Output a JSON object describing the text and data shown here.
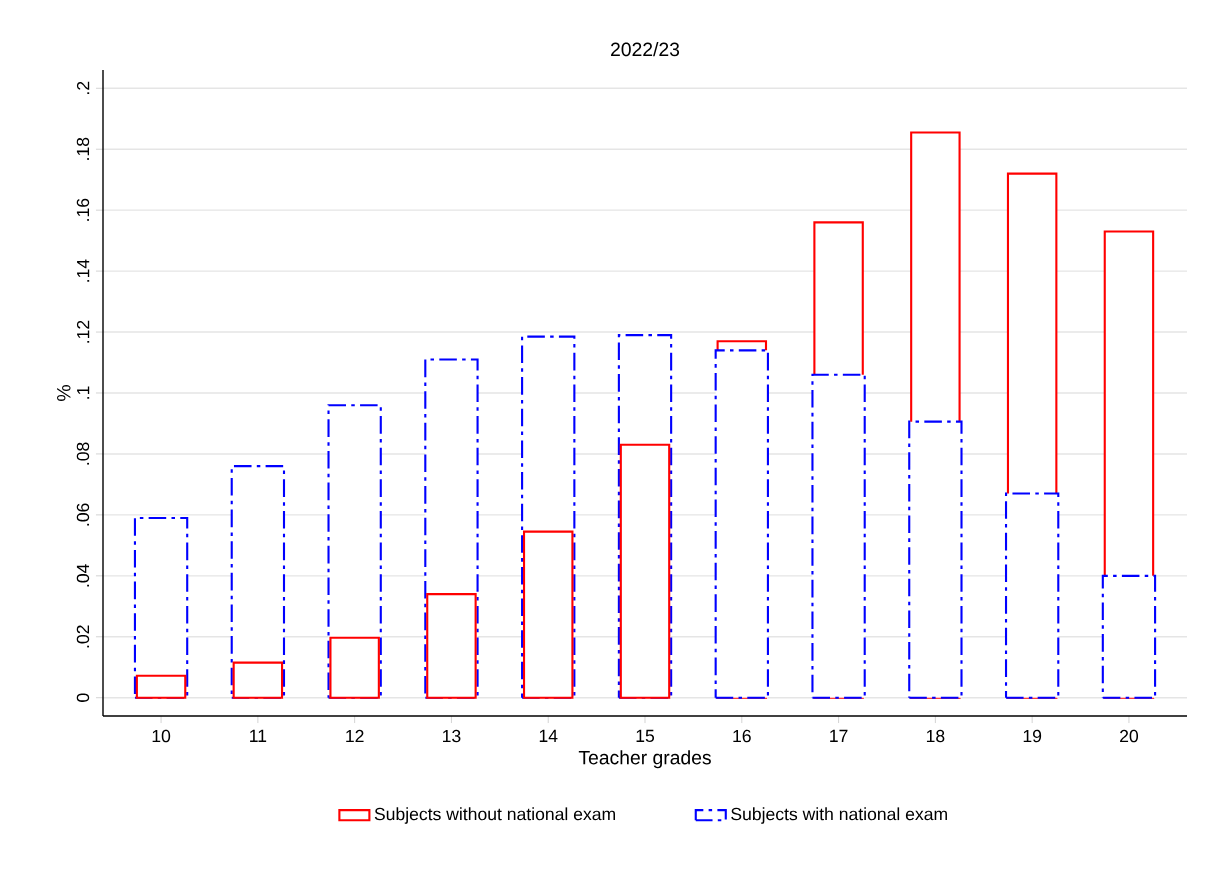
{
  "chart_data": {
    "type": "bar",
    "title": "2022/23",
    "xlabel": "Teacher grades",
    "ylabel": "%",
    "categories": [
      "10",
      "11",
      "12",
      "13",
      "14",
      "15",
      "16",
      "17",
      "18",
      "19",
      "20"
    ],
    "series": [
      {
        "name": "Subjects without national exam",
        "color": "#ff0000",
        "line_style": "solid",
        "values": [
          0.0072,
          0.0115,
          0.0197,
          0.034,
          0.0545,
          0.083,
          0.117,
          0.156,
          0.1855,
          0.172,
          0.153
        ]
      },
      {
        "name": "Subjects with national exam",
        "color": "#0000ff",
        "line_style": "dashed",
        "values": [
          0.059,
          0.076,
          0.096,
          0.111,
          0.1185,
          0.119,
          0.114,
          0.106,
          0.0906,
          0.067,
          0.04
        ]
      }
    ],
    "ylim": [
      -0.006,
      0.206
    ],
    "yticks": [
      0,
      {
        "value": 0.02,
        "label": ".02"
      },
      {
        "value": 0.04,
        "label": ".04"
      },
      {
        "value": 0.06,
        "label": ".06"
      },
      {
        "value": 0.08,
        "label": ".08"
      },
      {
        "value": 0.1,
        "label": ".1"
      },
      {
        "value": 0.12,
        "label": ".12"
      },
      {
        "value": 0.14,
        "label": ".14"
      },
      {
        "value": 0.16,
        "label": ".16"
      },
      {
        "value": 0.18,
        "label": ".18"
      },
      {
        "value": 0.2,
        "label": ".2"
      }
    ],
    "grid": "y",
    "legend": "bottom"
  }
}
